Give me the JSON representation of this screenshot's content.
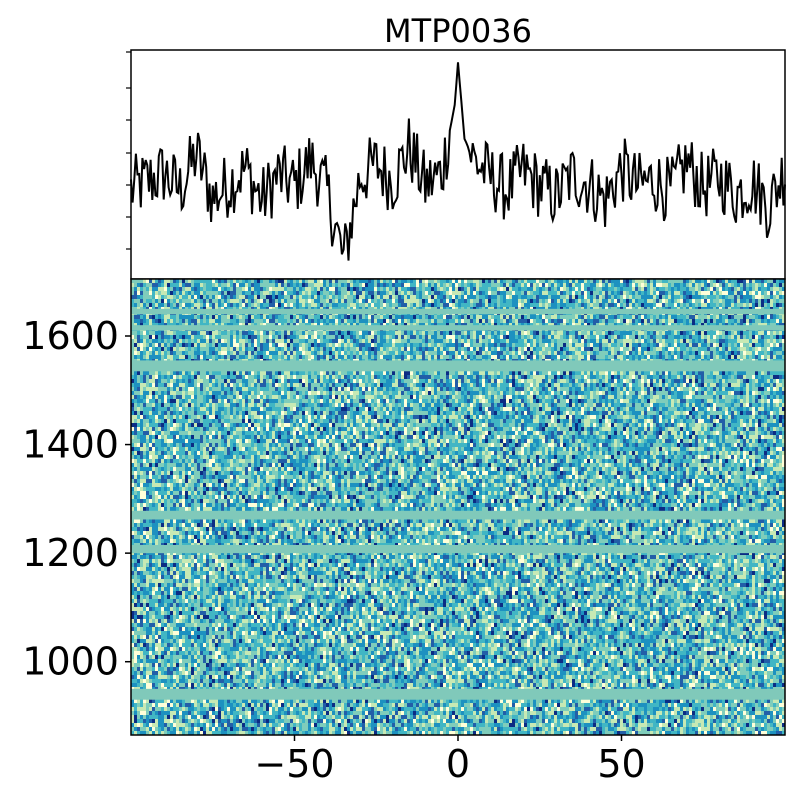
{
  "chart_data": [
    {
      "type": "line",
      "panel": "top",
      "title": "MTP0036",
      "x_range": [
        -100,
        100
      ],
      "y_ticklabels_shown": false,
      "series": [
        {
          "color": "#000000",
          "x_step": 0.5,
          "description_values": "noise trace with a single peak near x=0",
          "x": [
            -100,
            -95,
            -90,
            -85,
            -80,
            -75,
            -70,
            -65,
            -60,
            -55,
            -50,
            -45,
            -40,
            -35,
            -30,
            -25,
            -20,
            -15,
            -10,
            -5,
            -2,
            -1,
            0,
            1,
            2,
            5,
            10,
            15,
            20,
            25,
            30,
            35,
            40,
            45,
            50,
            55,
            60,
            65,
            70,
            75,
            80,
            85,
            90,
            95,
            100
          ],
          "y": [
            0.38,
            0.42,
            0.46,
            0.38,
            0.55,
            0.34,
            0.41,
            0.48,
            0.33,
            0.45,
            0.4,
            0.52,
            0.37,
            0.05,
            0.44,
            0.5,
            0.42,
            0.58,
            0.4,
            0.46,
            0.7,
            0.78,
            0.98,
            0.8,
            0.62,
            0.52,
            0.44,
            0.38,
            0.47,
            0.4,
            0.35,
            0.45,
            0.41,
            0.33,
            0.48,
            0.4,
            0.43,
            0.37,
            0.51,
            0.39,
            0.44,
            0.36,
            0.42,
            0.3,
            0.48
          ]
        }
      ]
    },
    {
      "type": "heatmap",
      "panel": "bottom",
      "x_range": [
        -100,
        100
      ],
      "y_range": [
        865,
        1705
      ],
      "x_ticks": [
        -50,
        0,
        50
      ],
      "x_ticklabels": [
        "−50",
        "0",
        "50"
      ],
      "y_ticks": [
        1000,
        1200,
        1400,
        1600
      ],
      "y_ticklabels": [
        "1000",
        "1200",
        "1400",
        "1600"
      ],
      "colormap": "YlGnBu",
      "colormap_colors": [
        "#ffffd9",
        "#c7e9b4",
        "#7fcdbb",
        "#41b6c4",
        "#1d91c0",
        "#225ea8",
        "#0c2c84"
      ],
      "masked_band_color": "#80c9ba",
      "masked_bands": [
        [
          930,
          950
        ],
        [
          1200,
          1215
        ],
        [
          1262,
          1278
        ],
        [
          1535,
          1555
        ],
        [
          1640,
          1650
        ],
        [
          1610,
          1620
        ]
      ],
      "note": "pixel-level noise values are not individually legible"
    }
  ]
}
